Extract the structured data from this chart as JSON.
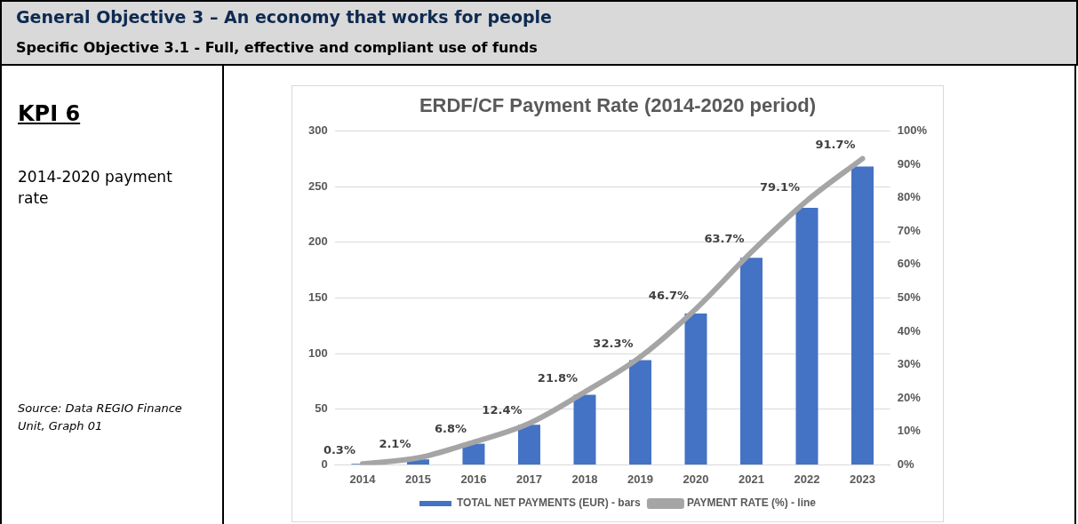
{
  "chart_data": {
    "type": "bar",
    "title": "ERDF/CF Payment Rate (2014-2020 period)",
    "annotations": [
      "General Objective 3 – An economy that works for people",
      "Specific Objective 3.1 - Full, effective and compliant use of funds",
      "KPI 6",
      "2014-2020 payment rate",
      "Source: Data REGIO Finance Unit, Graph 01"
    ],
    "categories": [
      "2014",
      "2015",
      "2016",
      "2017",
      "2018",
      "2019",
      "2020",
      "2021",
      "2022",
      "2023"
    ],
    "series": [
      {
        "name": "TOTAL NET PAYMENTS (EUR) - bars",
        "color": "#4472c4",
        "values": [
          1,
          5,
          19,
          36,
          63,
          94,
          136,
          186,
          231,
          268
        ]
      },
      {
        "name": "PAYMENT RATE (%) - line",
        "type": "line",
        "axis": "y2",
        "color": "#a5a5a5",
        "values": [
          0.3,
          2.1,
          6.8,
          12.4,
          21.8,
          32.3,
          46.7,
          63.7,
          79.1,
          91.7
        ],
        "value_labels": [
          "0.3%",
          "2.1%",
          "6.8%",
          "12.4%",
          "21.8%",
          "32.3%",
          "46.7%",
          "63.7%",
          "79.1%",
          "91.7%"
        ]
      }
    ],
    "ylim": [
      0,
      300
    ],
    "yticks": [
      0,
      50,
      100,
      150,
      200,
      250,
      300
    ],
    "y2lim": [
      0,
      100
    ],
    "y2ticks": [
      {
        "value": 0,
        "label": "0%"
      },
      {
        "value": 10,
        "label": "10%"
      },
      {
        "value": 20,
        "label": "20%"
      },
      {
        "value": 30,
        "label": "30%"
      },
      {
        "value": 40,
        "label": "40%"
      },
      {
        "value": 50,
        "label": "50%"
      },
      {
        "value": 60,
        "label": "60%"
      },
      {
        "value": 70,
        "label": "70%"
      },
      {
        "value": 80,
        "label": "80%"
      },
      {
        "value": 90,
        "label": "90%"
      },
      {
        "value": 100,
        "label": "100%"
      }
    ],
    "grid": "y",
    "legend": "bottom",
    "marker": "none",
    "line_style": "solid"
  }
}
